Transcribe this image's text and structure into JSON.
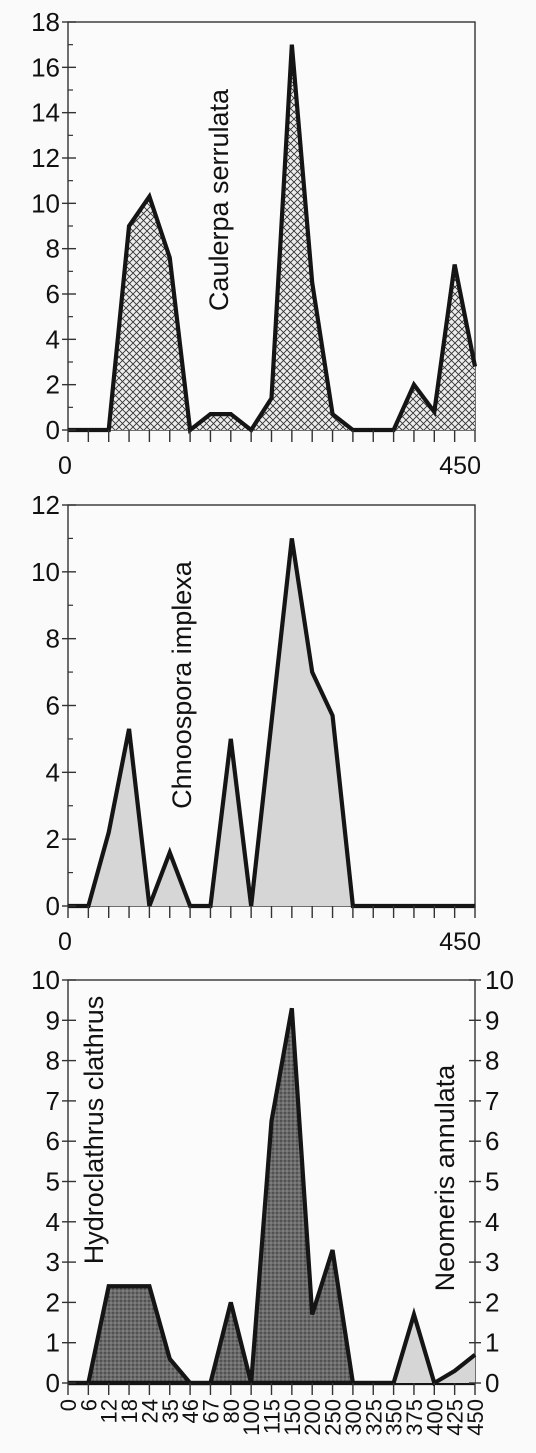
{
  "chart_data": [
    {
      "type": "area",
      "title": "",
      "species_label": "Caulerpa serrulata",
      "fill_pattern": "crosshatch",
      "ylim": [
        0,
        18
      ],
      "yticks": [
        "0",
        "2",
        "4",
        "6",
        "8",
        "10",
        "12",
        "14",
        "16",
        "18"
      ],
      "x_tick_labels": {
        "start": "0",
        "end": "450"
      },
      "series": [
        {
          "values": [
            0,
            0,
            0,
            9,
            10.3,
            7.6,
            0,
            0.7,
            0.7,
            0,
            1.4,
            17,
            6.5,
            0.7,
            0,
            0,
            0,
            2,
            0.8,
            7.3,
            2.8
          ]
        }
      ]
    },
    {
      "type": "area",
      "title": "",
      "species_label": "Chnoospora implexa",
      "fill_pattern": "light-gray",
      "ylim": [
        0,
        12
      ],
      "yticks": [
        "0",
        "2",
        "4",
        "6",
        "8",
        "10",
        "12"
      ],
      "x_tick_labels": {
        "start": "0",
        "end": "450"
      },
      "series": [
        {
          "values": [
            0,
            0,
            2.2,
            5.3,
            0,
            1.6,
            0,
            0,
            5,
            0,
            5.5,
            11,
            7,
            5.7,
            0,
            0,
            0,
            0,
            0,
            0,
            0
          ]
        }
      ]
    },
    {
      "type": "area",
      "title": "",
      "ylim": [
        0,
        10
      ],
      "yticks": [
        "0",
        "1",
        "2",
        "3",
        "4",
        "5",
        "6",
        "7",
        "8",
        "9",
        "10"
      ],
      "categories": [
        "0",
        "6",
        "12",
        "18",
        "24",
        "35",
        "46",
        "67",
        "80",
        "100",
        "115",
        "150",
        "200",
        "250",
        "300",
        "325",
        "350",
        "375",
        "400",
        "425",
        "450"
      ],
      "series": [
        {
          "name": "Hydroclathrus clathrus",
          "fill_pattern": "dark-stipple",
          "values": [
            0,
            0,
            2.4,
            2.4,
            2.4,
            0.6,
            0,
            0,
            2,
            0,
            6.5,
            9.3,
            1.7,
            3.3,
            0,
            0,
            0,
            0,
            0,
            0,
            0
          ]
        },
        {
          "name": "Neomeris annulata",
          "fill_pattern": "light-gray",
          "values": [
            0,
            0,
            0,
            0,
            0,
            0,
            0,
            0,
            0,
            0,
            0,
            0,
            0,
            0,
            0,
            0,
            0,
            1.7,
            0,
            0.3,
            0.7
          ]
        }
      ]
    }
  ]
}
